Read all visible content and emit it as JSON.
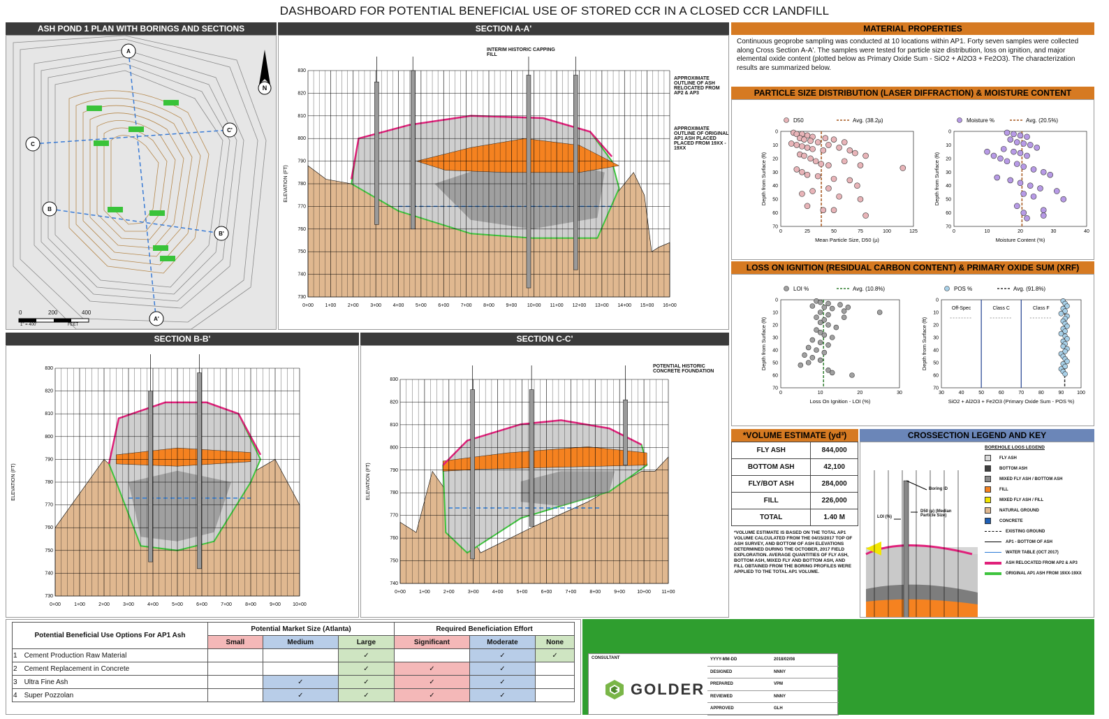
{
  "title": "DASHBOARD FOR POTENTIAL BENEFICIAL USE OF STORED CCR IN A CLOSED CCR LANDFILL",
  "panels": {
    "plan": "ASH POND 1 PLAN WITH BORINGS AND SECTIONS",
    "section_aa": "SECTION A-A'",
    "section_bb": "SECTION B-B'",
    "section_cc": "SECTION C-C'",
    "material": "MATERIAL PROPERTIES",
    "psd": "PARTICLE SIZE DISTRIBUTION (LASER DIFFRACTION) & MOISTURE CONTENT",
    "loi": "LOSS ON IGNITION (RESIDUAL CARBON CONTENT) & PRIMARY OXIDE SUM (XRF)",
    "volume": "*VOLUME ESTIMATE (yd³)",
    "legend": "CROSSECTION LEGEND AND KEY"
  },
  "material_text": "Continuous geoprobe sampling was conducted at 10 locations within AP1.  Forty seven samples were collected along Cross Section A-A'. The samples were tested for particle size distribution, loss on ignition, and major elemental oxide content (plotted below as Primary Oxide Sum - SiO2 + Al2O3 + Fe2O3). The characterization results are summarized below.",
  "plan_labels": {
    "scale_0": "0",
    "scale_200": "200",
    "scale_400": "400",
    "scale_note": "1\" = 400'",
    "scale_unit": "FEET",
    "markers": [
      "A",
      "A'",
      "B",
      "B'",
      "C",
      "C'"
    ]
  },
  "section_aa": {
    "ylabel": "ELEVATION (FT)",
    "yticks": [
      "830",
      "820",
      "810",
      "800",
      "790",
      "780",
      "770",
      "760",
      "750",
      "740",
      "730"
    ],
    "xticks": [
      "0+00",
      "1+00",
      "2+00",
      "3+00",
      "4+00",
      "5+00",
      "6+00",
      "7+00",
      "8+00",
      "9+00",
      "10+00",
      "11+00",
      "12+00",
      "13+00",
      "14+00",
      "15+00",
      "16+00"
    ],
    "note_capping": "INTERIM HISTORIC CAPPING FILL",
    "note_relocated": "APPROXIMATE OUTLINE OF ASH RELOCATED FROM AP2 & AP3",
    "note_original": "APPROXIMATE OUTLINE OF ORIGINAL AP1 ASH PLACED PLACED FROM 19XX - 19XX"
  },
  "section_bb": {
    "ylabel": "ELEVATION (FT)",
    "yticks": [
      "830",
      "820",
      "810",
      "800",
      "790",
      "780",
      "770",
      "760",
      "750",
      "740",
      "730"
    ],
    "xticks": [
      "0+00",
      "1+00",
      "2+00",
      "3+00",
      "4+00",
      "5+00",
      "6+00",
      "7+00",
      "8+00",
      "9+00",
      "10+00"
    ]
  },
  "section_cc": {
    "ylabel": "ELEVATION (FT)",
    "yticks": [
      "830",
      "820",
      "810",
      "800",
      "790",
      "780",
      "770",
      "760",
      "750",
      "740"
    ],
    "xticks": [
      "0+00",
      "1+00",
      "2+00",
      "3+00",
      "4+00",
      "5+00",
      "6+00",
      "7+00",
      "8+00",
      "9+00",
      "10+00",
      "11+00"
    ],
    "note_concrete": "POTENTIAL HISTORIC CONCRETE FOUNDATION"
  },
  "chart_data": [
    {
      "type": "scatter",
      "legend": [
        "D50",
        "Avg. (38.2µ)"
      ],
      "xlabel": "Mean Particle Size, D50 (µ)",
      "ylabel": "Depth from Surface (ft)",
      "xticks": [
        "0",
        "25",
        "50",
        "75",
        "100",
        "125"
      ],
      "yticks": [
        "0",
        "10",
        "20",
        "30",
        "40",
        "50",
        "60",
        "70"
      ],
      "xlim": [
        0,
        125
      ],
      "ylim": [
        0,
        70
      ],
      "avg": 38.2,
      "color": "#e8b4b8",
      "points": [
        [
          12,
          1
        ],
        [
          15,
          2
        ],
        [
          20,
          2
        ],
        [
          25,
          3
        ],
        [
          30,
          4
        ],
        [
          18,
          5
        ],
        [
          22,
          6
        ],
        [
          28,
          7
        ],
        [
          35,
          8
        ],
        [
          42,
          5
        ],
        [
          50,
          6
        ],
        [
          60,
          8
        ],
        [
          10,
          9
        ],
        [
          15,
          10
        ],
        [
          20,
          11
        ],
        [
          25,
          12
        ],
        [
          30,
          13
        ],
        [
          40,
          14
        ],
        [
          45,
          10
        ],
        [
          55,
          12
        ],
        [
          65,
          14
        ],
        [
          70,
          16
        ],
        [
          80,
          18
        ],
        [
          18,
          17
        ],
        [
          22,
          18
        ],
        [
          28,
          20
        ],
        [
          33,
          22
        ],
        [
          38,
          24
        ],
        [
          45,
          25
        ],
        [
          60,
          22
        ],
        [
          75,
          25
        ],
        [
          115,
          27
        ],
        [
          15,
          28
        ],
        [
          20,
          30
        ],
        [
          25,
          32
        ],
        [
          35,
          33
        ],
        [
          50,
          35
        ],
        [
          65,
          36
        ],
        [
          72,
          40
        ],
        [
          45,
          42
        ],
        [
          30,
          44
        ],
        [
          20,
          46
        ],
        [
          55,
          48
        ],
        [
          75,
          50
        ],
        [
          25,
          55
        ],
        [
          40,
          58
        ],
        [
          50,
          58
        ],
        [
          80,
          62
        ]
      ]
    },
    {
      "type": "scatter",
      "legend": [
        "Moisture %",
        "Avg. (20.5%)"
      ],
      "xlabel": "Moisture Content (%)",
      "ylabel": "Depth from Surface (ft)",
      "xticks": [
        "0",
        "10",
        "20",
        "30",
        "40"
      ],
      "yticks": [
        "0",
        "10",
        "20",
        "30",
        "40",
        "50",
        "60",
        "70"
      ],
      "xlim": [
        0,
        40
      ],
      "ylim": [
        0,
        70
      ],
      "avg": 20.5,
      "color": "#b79ae6",
      "points": [
        [
          16,
          1
        ],
        [
          18,
          2
        ],
        [
          20,
          3
        ],
        [
          22,
          4
        ],
        [
          17,
          6
        ],
        [
          19,
          8
        ],
        [
          21,
          9
        ],
        [
          23,
          10
        ],
        [
          25,
          12
        ],
        [
          15,
          13
        ],
        [
          18,
          15
        ],
        [
          20,
          16
        ],
        [
          22,
          18
        ],
        [
          10,
          15
        ],
        [
          12,
          18
        ],
        [
          14,
          20
        ],
        [
          16,
          22
        ],
        [
          19,
          24
        ],
        [
          21,
          26
        ],
        [
          24,
          28
        ],
        [
          27,
          30
        ],
        [
          29,
          32
        ],
        [
          13,
          34
        ],
        [
          17,
          36
        ],
        [
          20,
          38
        ],
        [
          23,
          40
        ],
        [
          26,
          42
        ],
        [
          31,
          44
        ],
        [
          21,
          46
        ],
        [
          24,
          48
        ],
        [
          33,
          50
        ],
        [
          19,
          55
        ],
        [
          27,
          58
        ],
        [
          27,
          62
        ],
        [
          21,
          60
        ],
        [
          22,
          64
        ]
      ]
    },
    {
      "type": "scatter",
      "legend": [
        "LOI %",
        "Avg. (10.8%)"
      ],
      "xlabel": "Loss On Ignition - LOI (%)",
      "ylabel": "Depth from Surface (ft)",
      "xticks": [
        "0",
        "10",
        "20",
        "30"
      ],
      "yticks": [
        "0",
        "10",
        "20",
        "30",
        "40",
        "50",
        "60",
        "70"
      ],
      "xlim": [
        0,
        30
      ],
      "ylim": [
        0,
        70
      ],
      "avg": 10.8,
      "color": "#a0a0a0",
      "points": [
        [
          9,
          1
        ],
        [
          10,
          2
        ],
        [
          12,
          3
        ],
        [
          8,
          5
        ],
        [
          11,
          6
        ],
        [
          13,
          7
        ],
        [
          15,
          4
        ],
        [
          17,
          6
        ],
        [
          16,
          9
        ],
        [
          10,
          10
        ],
        [
          12,
          12
        ],
        [
          9,
          14
        ],
        [
          11,
          16
        ],
        [
          10,
          18
        ],
        [
          12,
          20
        ],
        [
          14,
          22
        ],
        [
          9,
          24
        ],
        [
          10,
          26
        ],
        [
          11,
          28
        ],
        [
          13,
          30
        ],
        [
          8,
          32
        ],
        [
          10,
          34
        ],
        [
          12,
          36
        ],
        [
          7,
          38
        ],
        [
          9,
          40
        ],
        [
          11,
          42
        ],
        [
          6,
          44
        ],
        [
          8,
          46
        ],
        [
          10,
          48
        ],
        [
          7,
          50
        ],
        [
          5,
          52
        ],
        [
          12,
          56
        ],
        [
          13,
          58
        ],
        [
          18,
          60
        ],
        [
          25,
          10
        ],
        [
          16,
          14
        ]
      ]
    },
    {
      "type": "scatter",
      "legend": [
        "POS %",
        "Avg. (91.8%)"
      ],
      "xlabel": "SiO2 + Al2O3 + Fe2O3 (Primary Oxide Sum - POS %)",
      "ylabel": "Depth from Surface (ft)",
      "xticks": [
        "30",
        "40",
        "50",
        "60",
        "70",
        "80",
        "90",
        "100"
      ],
      "yticks": [
        "0",
        "10",
        "20",
        "30",
        "40",
        "50",
        "60",
        "70"
      ],
      "xlim": [
        30,
        100
      ],
      "ylim": [
        0,
        70
      ],
      "avg": 91.8,
      "zones": [
        "Off-Spec",
        "Class C",
        "Class F"
      ],
      "color": "#a8d0e8",
      "points": [
        [
          91,
          1
        ],
        [
          92,
          3
        ],
        [
          93,
          5
        ],
        [
          91,
          7
        ],
        [
          92,
          9
        ],
        [
          90,
          11
        ],
        [
          93,
          13
        ],
        [
          92,
          15
        ],
        [
          91,
          17
        ],
        [
          92,
          19
        ],
        [
          93,
          21
        ],
        [
          91,
          23
        ],
        [
          92,
          25
        ],
        [
          90,
          27
        ],
        [
          92,
          29
        ],
        [
          93,
          31
        ],
        [
          91,
          33
        ],
        [
          92,
          35
        ],
        [
          91,
          37
        ],
        [
          93,
          39
        ],
        [
          92,
          41
        ],
        [
          90,
          43
        ],
        [
          91,
          45
        ],
        [
          92,
          47
        ],
        [
          93,
          49
        ],
        [
          91,
          51
        ],
        [
          92,
          53
        ],
        [
          90,
          55
        ],
        [
          91,
          57
        ],
        [
          92,
          59
        ]
      ]
    }
  ],
  "volume": {
    "rows": [
      {
        "label": "FLY ASH",
        "value": "844,000"
      },
      {
        "label": "BOTTOM ASH",
        "value": "42,100"
      },
      {
        "label": "FLY/BOT ASH",
        "value": "284,000"
      },
      {
        "label": "FILL",
        "value": "226,000"
      },
      {
        "label": "TOTAL",
        "value": "1.40 M"
      }
    ],
    "note": "*VOLUME ESTIMATE IS BASED ON THE TOTAL AP1 VOLUME CALCULATED FROM THE 04/15/2017 TOP OF ASH SURVEY, AND BOTTOM OF ASH ELEVATIONS DETERMINED DURING THE OCTOBER, 2017 FIELD EXPLORATION. AVERAGE QUANTITIES OF FLY ASH, BOTTOM ASH, MIXED FLY AND BOTTOM ASH, AND FILL OBTAINED FROM THE BORING PROFILES WERE APPLIED TO THE TOTAL AP1 VOLUME."
  },
  "legend_key": {
    "title": "BOREHOLE LOGS LEGEND",
    "boring_id": "Boring ID",
    "loi": "LOI (%)",
    "d50": "D50 (µ) (Median Particle Size)",
    "items": [
      {
        "label": "FLY ASH",
        "color": "#d9d9d9"
      },
      {
        "label": "BOTTOM ASH",
        "color": "#404040"
      },
      {
        "label": "MIXED FLY ASH / BOTTOM ASH",
        "color": "#8c8c8c"
      },
      {
        "label": "FILL",
        "color": "#f58220"
      },
      {
        "label": "MIXED FLY ASH / FILL",
        "color": "#f2e600"
      },
      {
        "label": "NATURAL GROUND",
        "color": "#e0b890"
      },
      {
        "label": "CONCRETE",
        "color": "#1f5fb5"
      }
    ],
    "lines": [
      {
        "label": "EXISTING GROUND",
        "color": "#000",
        "style": "dash"
      },
      {
        "label": "AP1 - BOTTOM OF ASH",
        "color": "#000",
        "style": "solid"
      },
      {
        "label": "WATER TABLE (OCT 2017)",
        "color": "#2a7ad6",
        "style": "water"
      },
      {
        "label": "ASH RELOCATED FROM AP2 & AP3",
        "color": "#e0207a",
        "style": "thick"
      },
      {
        "label": "ORIGINAL AP1 ASH FROM 19XX-19XX",
        "color": "#3ec43e",
        "style": "thick"
      }
    ]
  },
  "beneficial": {
    "col_option": "Potential Beneficial Use Options For AP1 Ash",
    "group_market": "Potential Market Size (Atlanta)",
    "group_effort": "Required Beneficiation Effort",
    "sub": [
      "Small",
      "Medium",
      "Large",
      "Significant",
      "Moderate",
      "None"
    ],
    "rows": [
      {
        "num": "1",
        "name": "Cement Production Raw Material",
        "marks": [
          "",
          "",
          "✓",
          "",
          "✓",
          "✓"
        ]
      },
      {
        "num": "2",
        "name": "Cement Replacement in Concrete",
        "marks": [
          "",
          "",
          "✓",
          "✓",
          "✓",
          ""
        ]
      },
      {
        "num": "3",
        "name": "Ultra Fine Ash",
        "marks": [
          "",
          "✓",
          "✓",
          "✓",
          "✓",
          ""
        ]
      },
      {
        "num": "4",
        "name": "Super Pozzolan",
        "marks": [
          "",
          "✓",
          "✓",
          "✓",
          "✓",
          ""
        ]
      }
    ]
  },
  "titleblock": {
    "consultant": "CONSULTANT",
    "logo": "GOLDER",
    "rows": [
      {
        "k": "YYYY-MM-DD",
        "v": "2018/02/08"
      },
      {
        "k": "DESIGNED",
        "v": "NNNY"
      },
      {
        "k": "PREPARED",
        "v": "VPM"
      },
      {
        "k": "REVIEWED",
        "v": "NNNY"
      },
      {
        "k": "APPROVED",
        "v": "GLH"
      }
    ]
  },
  "colors": {
    "header": "#3b3b3b",
    "orange_header": "#d67a22",
    "green_block": "#2f9e2f",
    "natural_ground": "#e0b890",
    "relocated": "#e0207a",
    "original": "#3ec43e"
  }
}
